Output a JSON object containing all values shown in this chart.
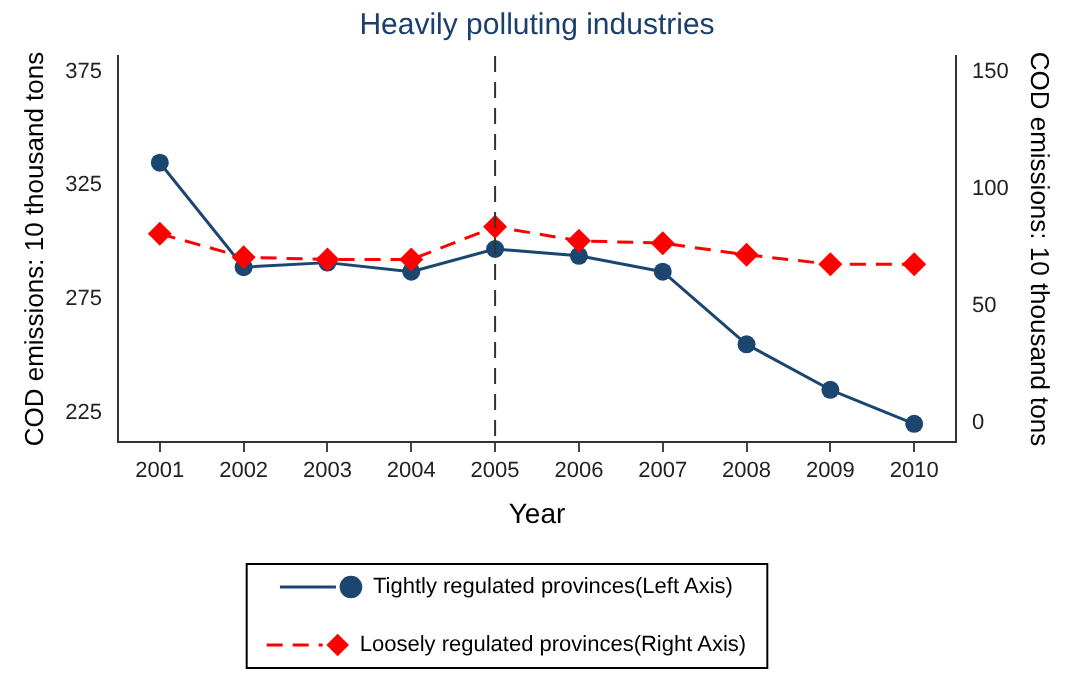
{
  "chart_data": {
    "type": "line",
    "title": "Heavily polluting industries",
    "xlabel": "Year",
    "ylabel": "COD emissions: 10 thousand tons",
    "y2label": "COD emissions: 10 thousand tons",
    "categories": [
      "2001",
      "2002",
      "2003",
      "2004",
      "2005",
      "2006",
      "2007",
      "2008",
      "2009",
      "2010"
    ],
    "series": [
      {
        "name": "Tightly regulated provinces(Left Axis)",
        "color": "#1a4670",
        "marker": "circle",
        "line_style": "solid",
        "values": [
          335,
          289,
          291,
          287,
          297,
          294,
          287,
          255,
          235,
          220
        ]
      },
      {
        "name": "Loosely regulated provinces(Right Axis)",
        "color": "#ff0000",
        "marker": "diamond",
        "line_style": "dashed",
        "axis": "y2",
        "values": [
          81,
          71,
          70,
          70,
          84,
          78,
          77,
          72,
          68,
          68
        ]
      }
    ],
    "ylim": [
      212,
      382
    ],
    "yticks": [
      225,
      275,
      325,
      375
    ],
    "y2lim": [
      -8,
      157
    ],
    "y2ticks": [
      0,
      50,
      100,
      150
    ],
    "ref_lines": [
      {
        "axis": "x",
        "value": "2005",
        "color": "#333333",
        "line_style": "dashed"
      }
    ],
    "grid": false,
    "legend": "bottom"
  }
}
